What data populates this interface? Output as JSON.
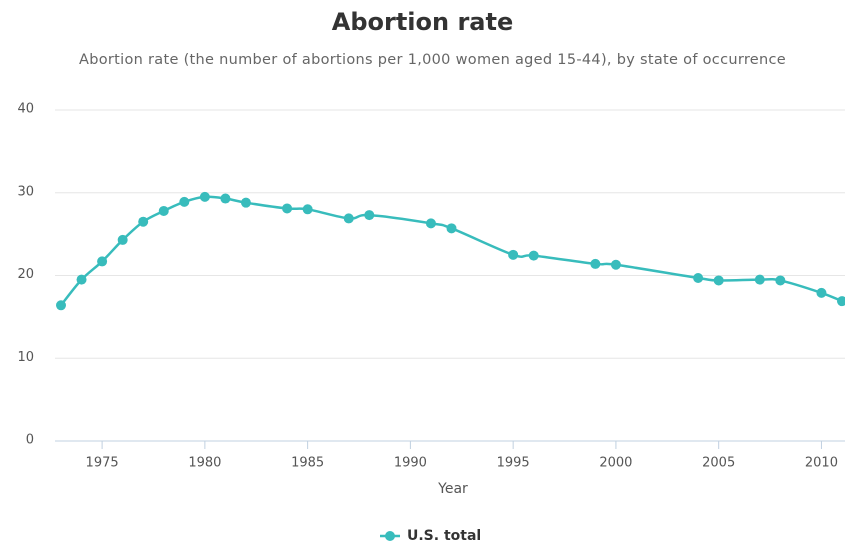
{
  "chart_data": {
    "type": "line",
    "title": "Abortion rate",
    "subtitle": "Abortion rate (the number of abortions per 1,000 women aged 15-44), by state of occurrence",
    "x_label": "Year",
    "x": [
      1973,
      1974,
      1975,
      1976,
      1977,
      1978,
      1979,
      1980,
      1981,
      1982,
      1984,
      1985,
      1987,
      1988,
      1991,
      1992,
      1995,
      1996,
      1999,
      2000,
      2004,
      2005,
      2007,
      2008,
      2010,
      2011
    ],
    "series": [
      {
        "name": "U.S. total",
        "color": "#38bcbc",
        "values": [
          16.4,
          19.5,
          21.7,
          24.3,
          26.5,
          27.8,
          28.9,
          29.5,
          29.3,
          28.8,
          28.1,
          28.0,
          26.9,
          27.3,
          26.3,
          25.7,
          22.5,
          22.4,
          21.4,
          21.3,
          19.7,
          19.4,
          19.5,
          19.4,
          17.9,
          16.9
        ]
      }
    ],
    "xlim": [
      1973,
      2011
    ],
    "xticks": [
      1975,
      1980,
      1985,
      1990,
      1995,
      2000,
      2005,
      2010
    ],
    "ylim": [
      0,
      40
    ],
    "yticks": [
      0,
      10,
      20,
      30,
      40
    ],
    "grid": true,
    "legend": "bottom"
  }
}
